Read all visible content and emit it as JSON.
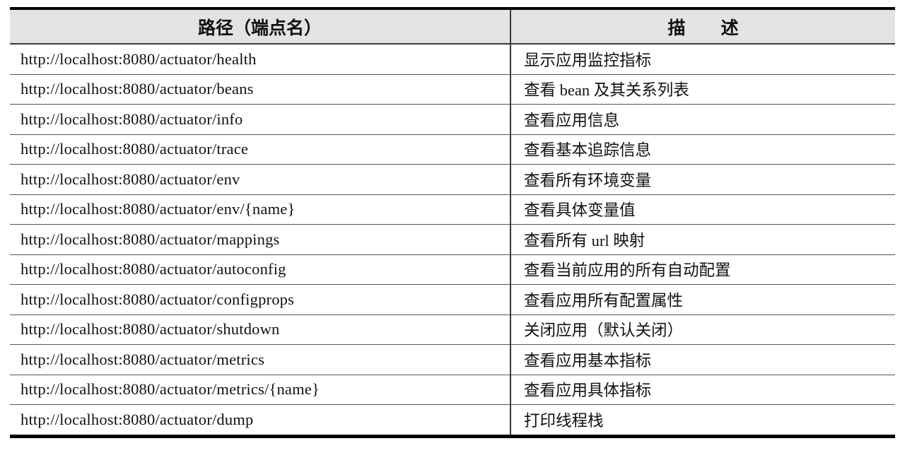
{
  "table": {
    "columns": [
      {
        "label": "路径（端点名）"
      },
      {
        "label": "描　　述"
      }
    ],
    "rows": [
      {
        "path": "http://localhost:8080/actuator/health",
        "description": "显示应用监控指标"
      },
      {
        "path": "http://localhost:8080/actuator/beans",
        "description": "查看 bean 及其关系列表"
      },
      {
        "path": "http://localhost:8080/actuator/info",
        "description": "查看应用信息"
      },
      {
        "path": "http://localhost:8080/actuator/trace",
        "description": "查看基本追踪信息"
      },
      {
        "path": "http://localhost:8080/actuator/env",
        "description": "查看所有环境变量"
      },
      {
        "path": "http://localhost:8080/actuator/env/{name}",
        "description": "查看具体变量值"
      },
      {
        "path": "http://localhost:8080/actuator/mappings",
        "description": "查看所有 url 映射"
      },
      {
        "path": "http://localhost:8080/actuator/autoconfig",
        "description": "查看当前应用的所有自动配置"
      },
      {
        "path": "http://localhost:8080/actuator/configprops",
        "description": "查看应用所有配置属性"
      },
      {
        "path": "http://localhost:8080/actuator/shutdown",
        "description": "关闭应用（默认关闭）"
      },
      {
        "path": "http://localhost:8080/actuator/metrics",
        "description": "查看应用基本指标"
      },
      {
        "path": "http://localhost:8080/actuator/metrics/{name}",
        "description": "查看应用具体指标"
      },
      {
        "path": "http://localhost:8080/actuator/dump",
        "description": "打印线程栈"
      }
    ]
  },
  "colors": {
    "header_background": "#e3e3e3",
    "heavy_border": "#000000",
    "light_border": "#555555",
    "text": "#111111"
  }
}
